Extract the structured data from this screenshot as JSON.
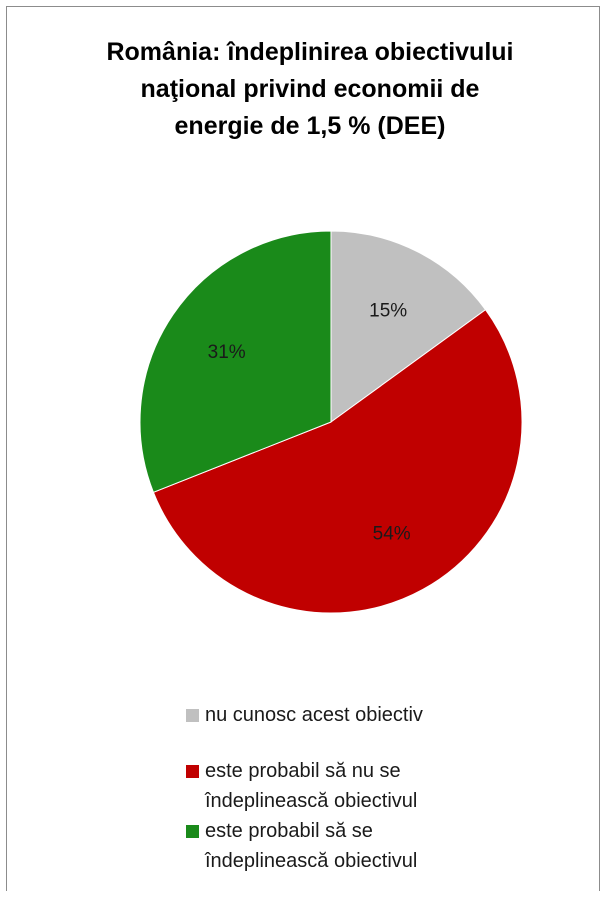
{
  "chart_data": {
    "type": "pie",
    "title": "România: îndeplinirea obiectivului\nnaţional privind economii de\nenergie de 1,5 % (DEE)",
    "slices": [
      {
        "label": "nu cunosc acest obiectiv",
        "value": 15,
        "value_label": "15%",
        "color": "#c0c0c0"
      },
      {
        "label": "este probabil să nu se\nîndeplinească obiectivul",
        "value": 54,
        "value_label": "54%",
        "color": "#c00000"
      },
      {
        "label": "este probabil să se\nîndeplinească obiectivul",
        "value": 31,
        "value_label": "31%",
        "color": "#1a8a1a"
      }
    ],
    "start_angle_deg": 0,
    "direction": "clockwise",
    "legend_position": "bottom"
  }
}
